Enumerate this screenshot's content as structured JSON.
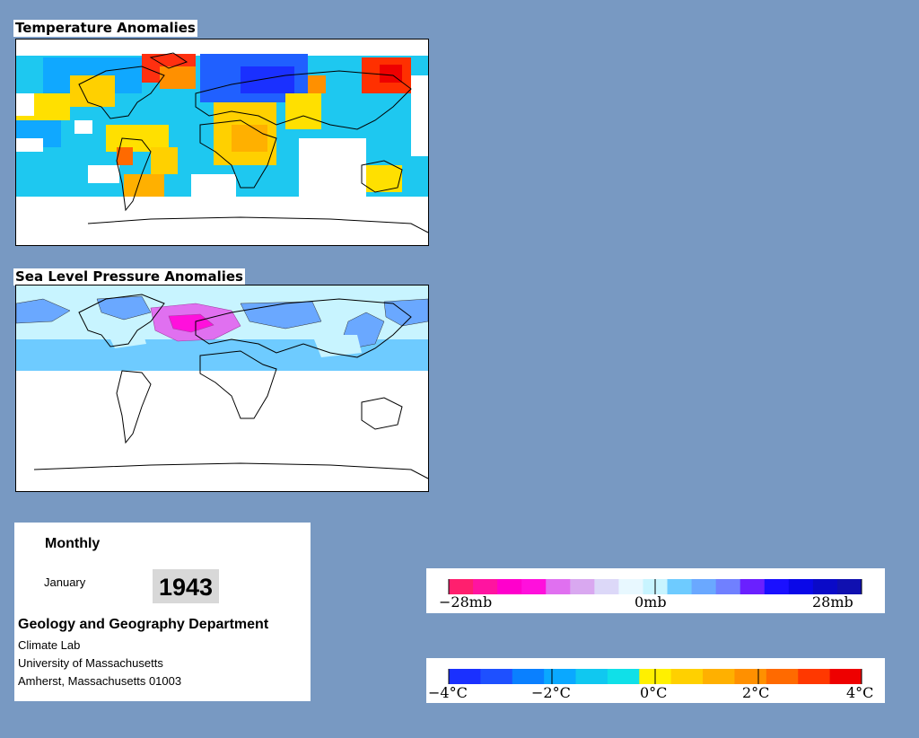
{
  "temperature_panel": {
    "title": "Temperature Anomalies"
  },
  "pressure_panel": {
    "title": "Sea Level Pressure Anomalies"
  },
  "info": {
    "period": "Monthly",
    "month": "January",
    "year": "1943",
    "department": "Geology and Geography Department",
    "lab": "Climate Lab",
    "university": "University of Massachusetts",
    "address": "Amherst, Massachusetts 01003"
  },
  "pressure_legend": {
    "labels": [
      "−28mb",
      "0mb",
      "28mb"
    ],
    "colors": [
      "#ff1f6e",
      "#ff14a0",
      "#ff00cc",
      "#ff10dc",
      "#e070f0",
      "#d9a8f0",
      "#dcd8f8",
      "#e8f8ff",
      "#c8f4ff",
      "#6ecbff",
      "#6aa8ff",
      "#7080ff",
      "#6a20ff",
      "#1a10ff",
      "#0a08e8",
      "#0a0ac8",
      "#1010b0"
    ]
  },
  "temperature_legend": {
    "labels": [
      "−4°C",
      "−2°C",
      "0°C",
      "2°C",
      "4°C"
    ],
    "colors": [
      "#1a30ff",
      "#1e50ff",
      "#0a80ff",
      "#0aa8ff",
      "#10c8f0",
      "#10e0e8",
      "#fff000",
      "#ffd000",
      "#ffb000",
      "#ff9000",
      "#ff6a00",
      "#ff3800",
      "#ee0000"
    ]
  }
}
